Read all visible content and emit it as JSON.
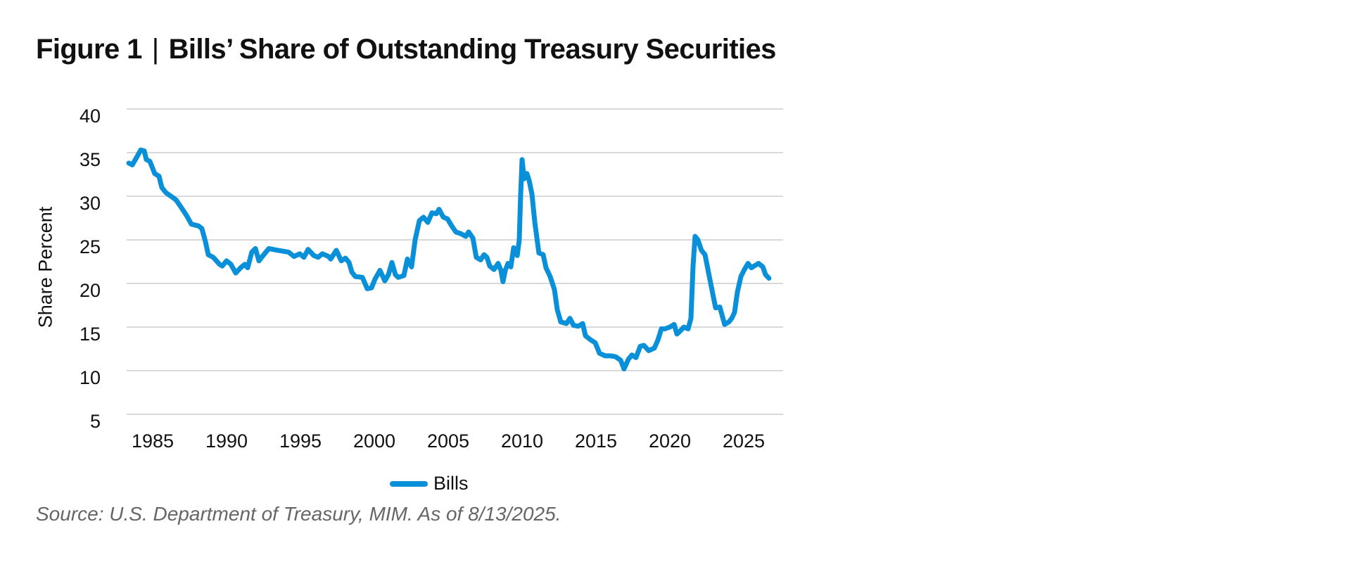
{
  "figure": {
    "label": "Figure 1",
    "separator": "|",
    "title": "Bills’ Share of Outstanding Treasury Securities",
    "source": "Source: U.S. Department of Treasury, MIM. As of 8/13/2025."
  },
  "colors": {
    "series": "#0A8FD9",
    "grid": "#D9D9D9",
    "text": "#111111",
    "source_text": "#666666"
  },
  "chart_data": {
    "type": "line",
    "title": "Bills’ Share of Outstanding Treasury Securities",
    "xlabel": "",
    "ylabel": "Share Percent",
    "ylim": [
      5,
      40
    ],
    "yticks": [
      5,
      10,
      15,
      20,
      25,
      30,
      35,
      40
    ],
    "xticks": [
      1985,
      1990,
      1995,
      2000,
      2005,
      2010,
      2015,
      2020,
      2025
    ],
    "xlim": [
      1983.3,
      2026.8
    ],
    "grid": true,
    "legend_position": "bottom",
    "series": [
      {
        "name": "Bills",
        "color": "#0A8FD9",
        "x": [
          1983.38,
          1983.62,
          1983.86,
          1984.19,
          1984.43,
          1984.57,
          1984.81,
          1985.14,
          1985.43,
          1985.62,
          1985.9,
          1986.24,
          1986.57,
          1986.9,
          1987.29,
          1987.62,
          1988.1,
          1988.33,
          1988.57,
          1988.76,
          1989.1,
          1989.52,
          1989.71,
          1990.0,
          1990.29,
          1990.62,
          1990.95,
          1991.24,
          1991.43,
          1991.71,
          1991.95,
          1992.19,
          1992.52,
          1992.86,
          1993.48,
          1994.19,
          1994.57,
          1994.95,
          1995.24,
          1995.52,
          1995.9,
          1996.19,
          1996.48,
          1996.9,
          1997.05,
          1997.43,
          1997.76,
          1998.05,
          1998.29,
          1998.48,
          1998.71,
          1999.19,
          1999.52,
          1999.81,
          2000.05,
          2000.38,
          2000.71,
          2000.95,
          2001.19,
          2001.43,
          2001.62,
          2002.0,
          2002.24,
          2002.52,
          2002.76,
          2003.05,
          2003.33,
          2003.62,
          2003.9,
          2004.19,
          2004.38,
          2004.67,
          2004.95,
          2005.24,
          2005.52,
          2005.86,
          2006.19,
          2006.38,
          2006.67,
          2006.9,
          2007.19,
          2007.43,
          2007.62,
          2007.81,
          2008.1,
          2008.38,
          2008.57,
          2008.71,
          2008.86,
          2009.05,
          2009.24,
          2009.43,
          2009.67,
          2009.81,
          2009.9,
          2010.0,
          2010.14,
          2010.33,
          2010.48,
          2010.67,
          2010.86,
          2011.14,
          2011.43,
          2011.62,
          2011.9,
          2012.19,
          2012.38,
          2012.62,
          2013.0,
          2013.24,
          2013.48,
          2013.81,
          2014.1,
          2014.29,
          2014.67,
          2014.95,
          2015.24,
          2015.62,
          2016.0,
          2016.33,
          2016.67,
          2016.9,
          2017.19,
          2017.43,
          2017.71,
          2018.0,
          2018.24,
          2018.57,
          2018.95,
          2019.19,
          2019.43,
          2019.67,
          2020.0,
          2020.29,
          2020.48,
          2020.67,
          2020.95,
          2021.24,
          2021.43,
          2021.57,
          2021.71,
          2021.9,
          2022.14,
          2022.38,
          2022.67,
          2022.95,
          2023.1,
          2023.38,
          2023.71,
          2024.0,
          2024.19,
          2024.38,
          2024.57,
          2024.81,
          2025.05,
          2025.29,
          2025.52,
          2025.71,
          2026.0,
          2026.29,
          2026.48,
          2026.71
        ],
        "values": [
          33.8,
          33.6,
          34.3,
          35.3,
          35.2,
          34.2,
          34.0,
          32.6,
          32.3,
          31.0,
          30.4,
          30.0,
          29.6,
          28.8,
          27.8,
          26.8,
          26.6,
          26.3,
          24.8,
          23.3,
          23.0,
          22.2,
          22.0,
          22.6,
          22.2,
          21.2,
          21.8,
          22.2,
          21.8,
          23.6,
          24.0,
          22.6,
          23.3,
          24.0,
          23.8,
          23.6,
          23.1,
          23.4,
          23.0,
          23.9,
          23.2,
          23.0,
          23.4,
          23.1,
          22.8,
          23.8,
          22.6,
          22.9,
          22.4,
          21.3,
          20.8,
          20.7,
          19.4,
          19.5,
          20.5,
          21.5,
          20.3,
          21.0,
          22.4,
          21.0,
          20.7,
          20.9,
          22.8,
          21.9,
          25.0,
          27.2,
          27.6,
          27.0,
          28.1,
          28.0,
          28.5,
          27.6,
          27.4,
          26.6,
          25.9,
          25.7,
          25.4,
          25.9,
          25.2,
          23.0,
          22.7,
          23.3,
          23.0,
          22.0,
          21.6,
          22.3,
          21.5,
          20.2,
          21.5,
          22.3,
          21.9,
          24.1,
          23.2,
          25.0,
          30.0,
          34.2,
          32.0,
          32.6,
          31.8,
          30.2,
          27.0,
          23.5,
          23.3,
          21.8,
          20.8,
          19.3,
          17.0,
          15.6,
          15.4,
          16.0,
          15.2,
          15.1,
          15.4,
          14.0,
          13.5,
          13.2,
          12.0,
          11.7,
          11.7,
          11.6,
          11.2,
          10.2,
          11.3,
          11.8,
          11.5,
          12.8,
          12.9,
          12.3,
          12.6,
          13.5,
          14.8,
          14.8,
          15.0,
          15.3,
          14.2,
          14.5,
          15.0,
          14.8,
          16.0,
          22.0,
          25.4,
          25.0,
          23.8,
          23.3,
          20.8,
          18.4,
          17.2,
          17.3,
          15.3,
          15.6,
          16.0,
          16.7,
          19.0,
          20.8,
          21.6,
          22.3,
          21.8,
          22.0,
          22.3,
          21.9,
          21.0,
          20.6
        ]
      }
    ]
  },
  "legend": {
    "items": [
      {
        "label": "Bills"
      }
    ]
  }
}
